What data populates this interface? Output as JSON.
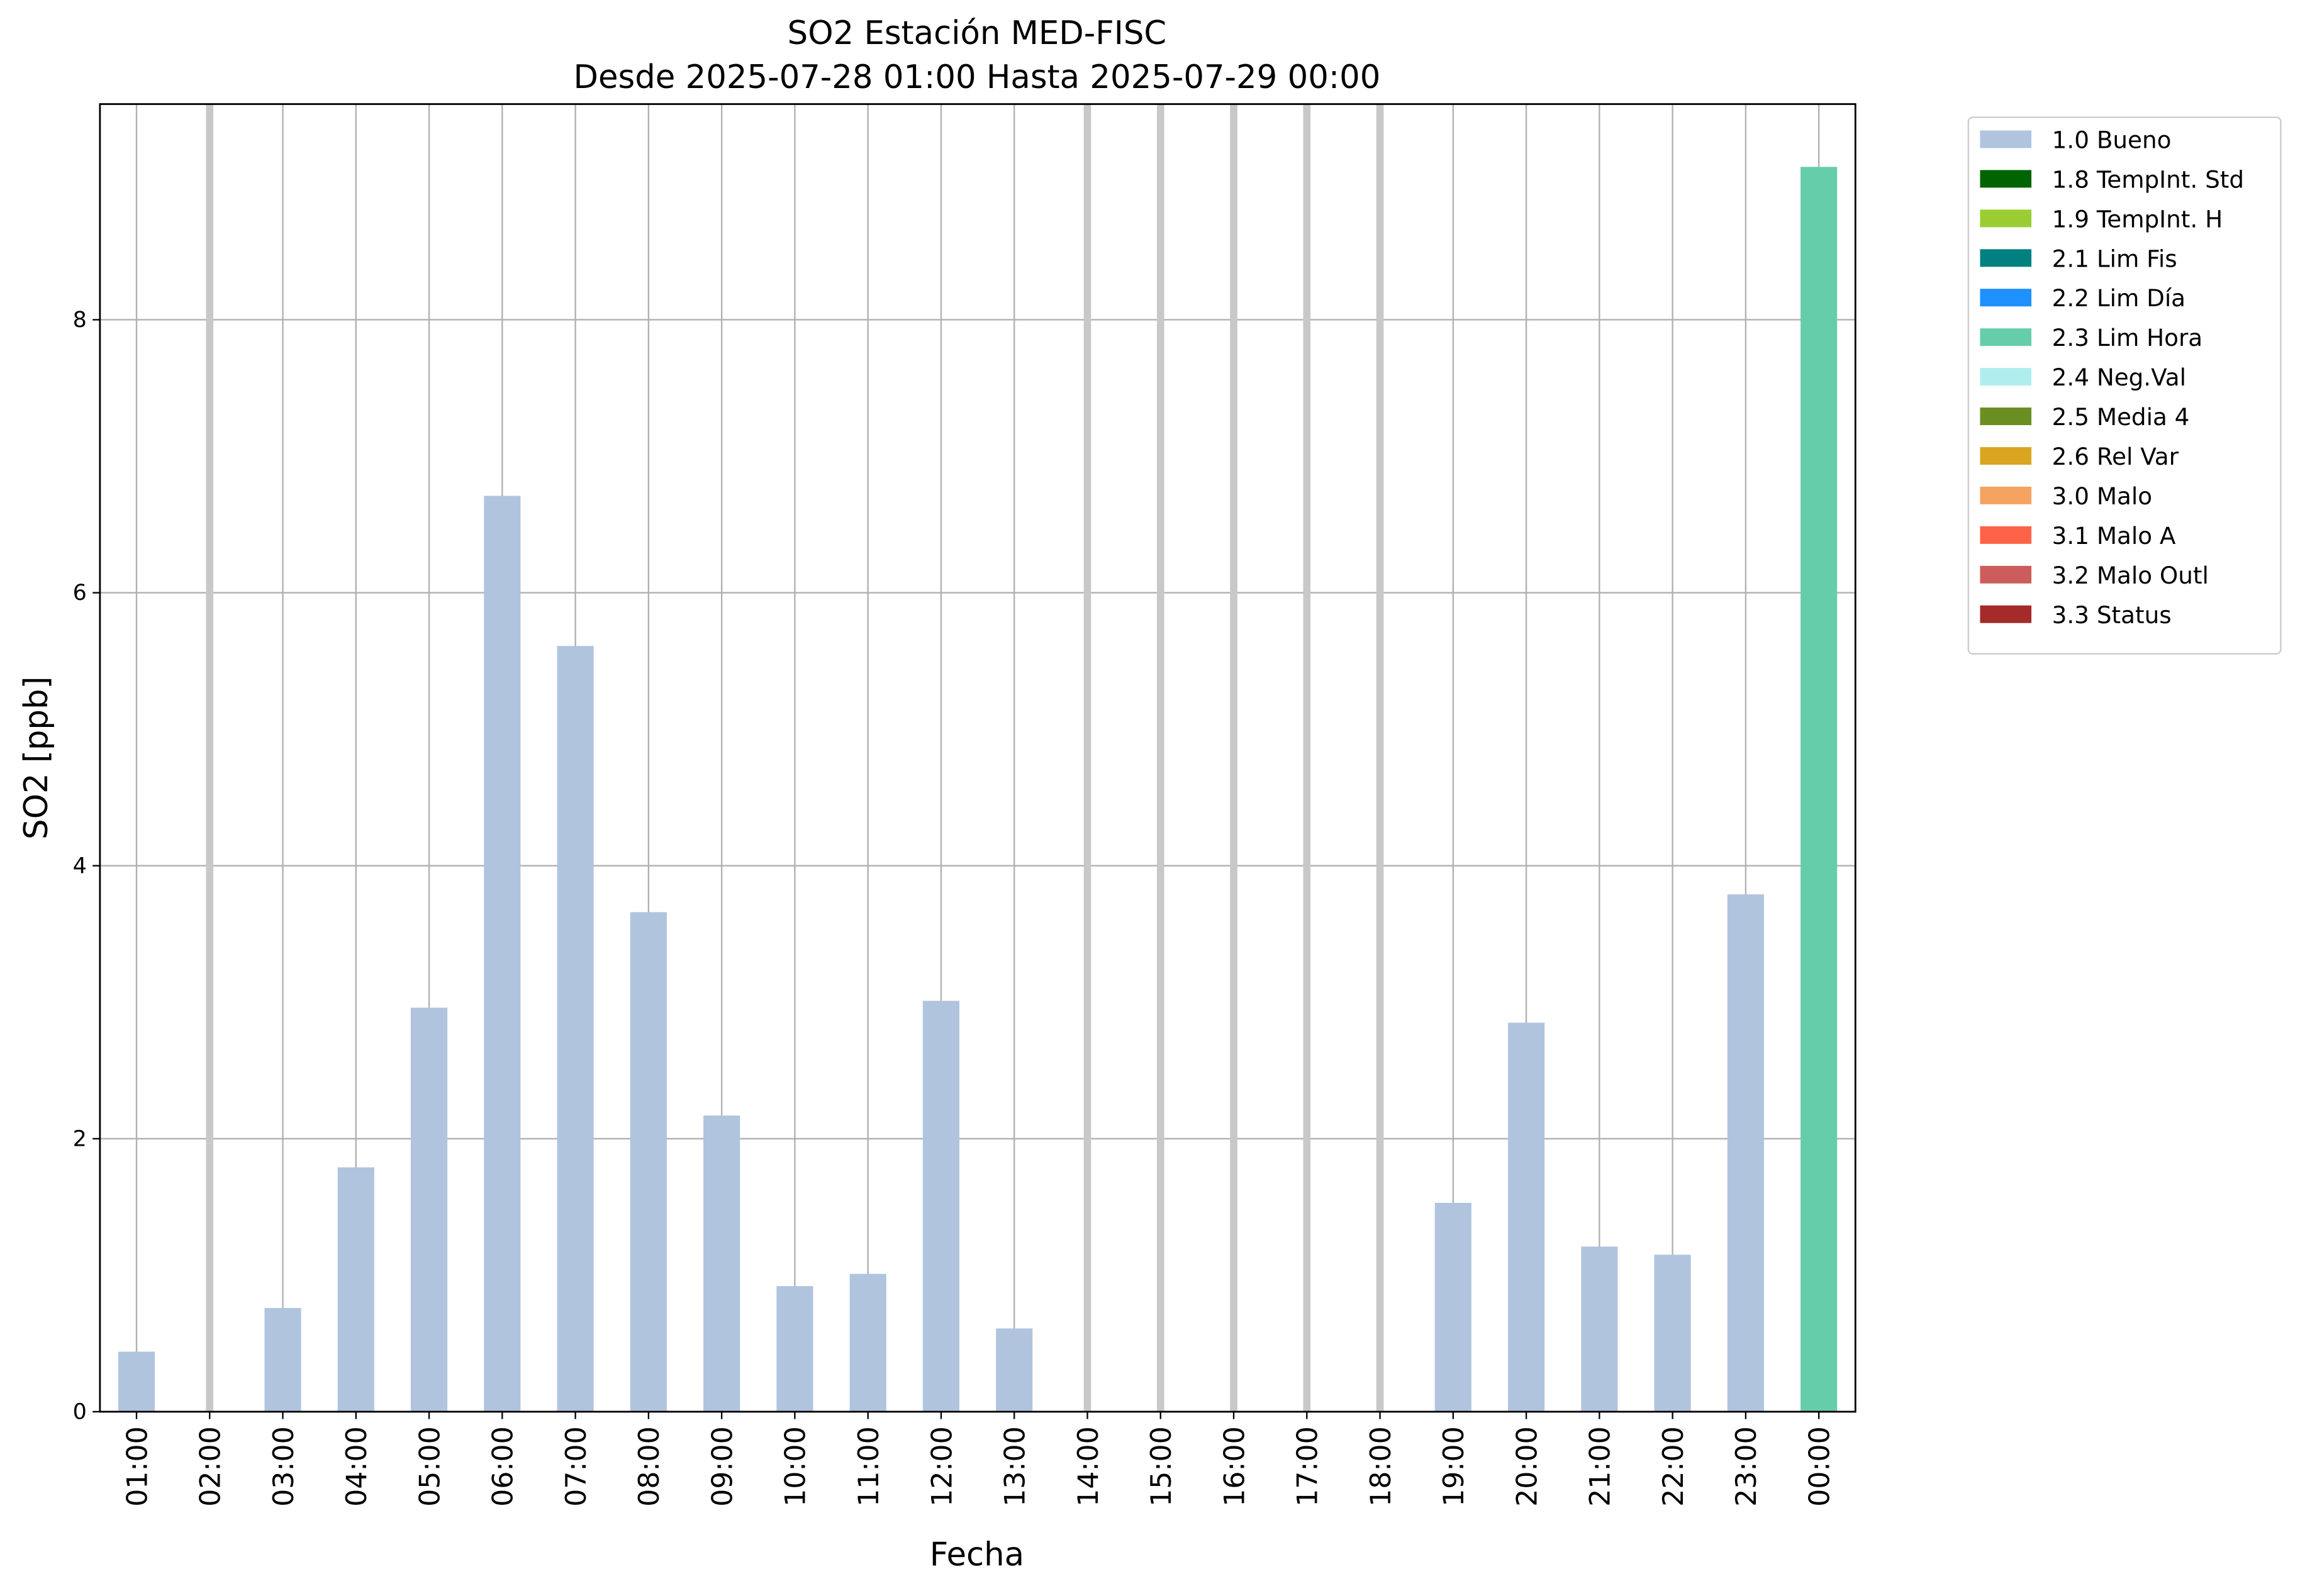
{
  "chart_data": {
    "type": "bar",
    "stacked": true,
    "title": "SO2 Estación MED-FISC",
    "subtitle": "Desde 2025-07-28 01:00 Hasta 2025-07-29 00:00",
    "x_label": "Fecha",
    "y_label": "SO2 [ppb]",
    "categories": [
      "01:00",
      "02:00",
      "03:00",
      "04:00",
      "05:00",
      "06:00",
      "07:00",
      "08:00",
      "09:00",
      "10:00",
      "11:00",
      "12:00",
      "13:00",
      "14:00",
      "15:00",
      "16:00",
      "17:00",
      "18:00",
      "19:00",
      "20:00",
      "21:00",
      "22:00",
      "23:00",
      "00:00"
    ],
    "series": [
      {
        "name": "1.0 Bueno",
        "color": "#b0c4de",
        "values": [
          0.44,
          null,
          0.76,
          1.79,
          2.96,
          6.71,
          5.61,
          3.66,
          2.17,
          0.92,
          1.01,
          3.01,
          0.61,
          null,
          null,
          null,
          null,
          null,
          1.53,
          2.85,
          1.21,
          1.15,
          3.79,
          null
        ]
      },
      {
        "name": "1.8 TempInt. Std",
        "color": "#006400",
        "values": [
          null,
          null,
          null,
          null,
          null,
          null,
          null,
          null,
          null,
          null,
          null,
          null,
          null,
          null,
          null,
          null,
          null,
          null,
          null,
          null,
          null,
          null,
          null,
          null
        ]
      },
      {
        "name": "1.9 TempInt. H",
        "color": "#9acd32",
        "values": [
          null,
          null,
          null,
          null,
          null,
          null,
          null,
          null,
          null,
          null,
          null,
          null,
          null,
          null,
          null,
          null,
          null,
          null,
          null,
          null,
          null,
          null,
          null,
          null
        ]
      },
      {
        "name": "2.1 Lim Fis",
        "color": "#008080",
        "values": [
          null,
          null,
          null,
          null,
          null,
          null,
          null,
          null,
          null,
          null,
          null,
          null,
          null,
          null,
          null,
          null,
          null,
          null,
          null,
          null,
          null,
          null,
          null,
          null
        ]
      },
      {
        "name": "2.2 Lim Día",
        "color": "#1e90ff",
        "values": [
          null,
          null,
          null,
          null,
          null,
          null,
          null,
          null,
          null,
          null,
          null,
          null,
          null,
          null,
          null,
          null,
          null,
          null,
          null,
          null,
          null,
          null,
          null,
          null
        ]
      },
      {
        "name": "2.3 Lim Hora",
        "color": "#66cdaa",
        "values": [
          null,
          null,
          null,
          null,
          null,
          null,
          null,
          null,
          null,
          null,
          null,
          null,
          null,
          null,
          null,
          null,
          null,
          null,
          null,
          null,
          null,
          null,
          null,
          9.12
        ]
      },
      {
        "name": "2.4 Neg.Val",
        "color": "#afeeee",
        "values": [
          null,
          null,
          null,
          null,
          null,
          null,
          null,
          null,
          null,
          null,
          null,
          null,
          null,
          null,
          null,
          null,
          null,
          null,
          null,
          null,
          null,
          null,
          null,
          null
        ]
      },
      {
        "name": "2.5 Media 4",
        "color": "#6b8e23",
        "values": [
          null,
          null,
          null,
          null,
          null,
          null,
          null,
          null,
          null,
          null,
          null,
          null,
          null,
          null,
          null,
          null,
          null,
          null,
          null,
          null,
          null,
          null,
          null,
          null
        ]
      },
      {
        "name": "2.6 Rel Var",
        "color": "#daa520",
        "values": [
          null,
          null,
          null,
          null,
          null,
          null,
          null,
          null,
          null,
          null,
          null,
          null,
          null,
          null,
          null,
          null,
          null,
          null,
          null,
          null,
          null,
          null,
          null,
          null
        ]
      },
      {
        "name": "3.0 Malo",
        "color": "#f4a460",
        "values": [
          null,
          null,
          null,
          null,
          null,
          null,
          null,
          null,
          null,
          null,
          null,
          null,
          null,
          null,
          null,
          null,
          null,
          null,
          null,
          null,
          null,
          null,
          null,
          null
        ]
      },
      {
        "name": "3.1 Malo A",
        "color": "#ff6347",
        "values": [
          null,
          null,
          null,
          null,
          null,
          null,
          null,
          null,
          null,
          null,
          null,
          null,
          null,
          null,
          null,
          null,
          null,
          null,
          null,
          null,
          null,
          null,
          null,
          null
        ]
      },
      {
        "name": "3.2 Malo Outl",
        "color": "#cd5c5c",
        "values": [
          null,
          null,
          null,
          null,
          null,
          null,
          null,
          null,
          null,
          null,
          null,
          null,
          null,
          null,
          null,
          null,
          null,
          null,
          null,
          null,
          null,
          null,
          null,
          null
        ]
      },
      {
        "name": "3.3 Status",
        "color": "#a52a2a",
        "values": [
          null,
          null,
          null,
          null,
          null,
          null,
          null,
          null,
          null,
          null,
          null,
          null,
          null,
          null,
          null,
          null,
          null,
          null,
          null,
          null,
          null,
          null,
          null,
          null
        ]
      }
    ],
    "ylim": [
      0,
      9.58
    ],
    "yticks": [
      0,
      2,
      4,
      6,
      8
    ],
    "grid": true,
    "legend": "outside-upper-right"
  }
}
